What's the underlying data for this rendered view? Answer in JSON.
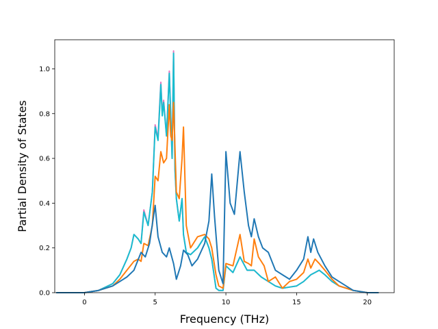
{
  "chart_data": {
    "type": "line",
    "xlabel": "Frequency (THz)",
    "ylabel": "Partial Density of States",
    "xlim": [
      -2.1,
      21.9
    ],
    "ylim": [
      0.0,
      1.13
    ],
    "xticks": [
      0,
      5,
      10,
      15,
      20
    ],
    "xtick_labels": [
      "0",
      "5",
      "10",
      "15",
      "20"
    ],
    "yticks": [
      0.0,
      0.2,
      0.4,
      0.6,
      0.8,
      1.0
    ],
    "ytick_labels": [
      "0.0",
      "0.2",
      "0.4",
      "0.6",
      "0.8",
      "1.0"
    ],
    "grid": false,
    "legend": "none",
    "series": [
      {
        "color": "#e377c2",
        "x": [
          -2.0,
          0.0,
          1.0,
          2.0,
          2.5,
          3.0,
          3.3,
          3.5,
          3.8,
          4.0,
          4.2,
          4.5,
          4.8,
          5.0,
          5.2,
          5.4,
          5.5,
          5.6,
          5.8,
          6.0,
          6.2,
          6.3,
          6.4,
          6.5,
          6.7,
          6.9,
          7.0,
          7.2,
          7.5,
          8.0,
          8.5,
          8.8,
          9.0,
          9.3,
          9.5,
          9.8,
          10.0,
          10.5,
          11.0,
          11.5,
          12.0,
          12.5,
          13.0,
          13.5,
          14.0,
          14.5,
          15.0,
          15.5,
          16.0,
          16.3,
          16.6,
          17.0,
          17.5,
          18.0,
          19.0,
          20.0,
          20.8
        ],
        "y": [
          0.0,
          0.0,
          0.01,
          0.04,
          0.08,
          0.15,
          0.2,
          0.26,
          0.24,
          0.22,
          0.37,
          0.3,
          0.45,
          0.75,
          0.69,
          0.94,
          0.8,
          0.86,
          0.7,
          0.99,
          0.6,
          1.08,
          0.55,
          0.42,
          0.32,
          0.42,
          0.26,
          0.18,
          0.17,
          0.2,
          0.25,
          0.2,
          0.15,
          0.02,
          0.01,
          0.01,
          0.12,
          0.09,
          0.16,
          0.1,
          0.1,
          0.07,
          0.05,
          0.03,
          0.02,
          0.025,
          0.03,
          0.05,
          0.08,
          0.09,
          0.1,
          0.08,
          0.05,
          0.03,
          0.01,
          0.0,
          0.0
        ]
      },
      {
        "color": "#17becf",
        "x": [
          -2.0,
          0.0,
          1.0,
          2.0,
          2.5,
          3.0,
          3.3,
          3.5,
          3.8,
          4.0,
          4.2,
          4.5,
          4.8,
          5.0,
          5.2,
          5.4,
          5.5,
          5.6,
          5.8,
          6.0,
          6.2,
          6.3,
          6.4,
          6.5,
          6.7,
          6.9,
          7.0,
          7.2,
          7.5,
          8.0,
          8.5,
          8.8,
          9.0,
          9.3,
          9.5,
          9.8,
          10.0,
          10.5,
          11.0,
          11.5,
          12.0,
          12.5,
          13.0,
          13.5,
          14.0,
          14.5,
          15.0,
          15.5,
          16.0,
          16.3,
          16.6,
          17.0,
          17.5,
          18.0,
          19.0,
          20.0,
          20.8
        ],
        "y": [
          0.0,
          0.0,
          0.01,
          0.04,
          0.08,
          0.15,
          0.2,
          0.26,
          0.24,
          0.22,
          0.36,
          0.3,
          0.45,
          0.74,
          0.68,
          0.93,
          0.79,
          0.85,
          0.7,
          0.98,
          0.6,
          1.07,
          0.55,
          0.42,
          0.32,
          0.42,
          0.26,
          0.18,
          0.17,
          0.2,
          0.25,
          0.2,
          0.15,
          0.02,
          0.01,
          0.01,
          0.12,
          0.09,
          0.16,
          0.1,
          0.1,
          0.07,
          0.05,
          0.03,
          0.02,
          0.025,
          0.03,
          0.05,
          0.08,
          0.09,
          0.1,
          0.08,
          0.05,
          0.03,
          0.01,
          0.0,
          0.0
        ]
      },
      {
        "color": "#ff7f0e",
        "x": [
          -2.0,
          0.0,
          1.0,
          2.0,
          2.5,
          3.0,
          3.5,
          3.8,
          4.0,
          4.2,
          4.5,
          4.8,
          5.0,
          5.2,
          5.4,
          5.6,
          5.8,
          6.0,
          6.1,
          6.2,
          6.3,
          6.5,
          6.7,
          6.9,
          7.0,
          7.2,
          7.5,
          8.0,
          8.5,
          8.8,
          9.0,
          9.3,
          9.5,
          9.8,
          10.0,
          10.5,
          11.0,
          11.3,
          11.6,
          11.8,
          12.0,
          12.3,
          12.7,
          13.0,
          13.5,
          14.0,
          14.5,
          15.0,
          15.5,
          15.8,
          16.0,
          16.3,
          16.6,
          17.0,
          17.5,
          18.0,
          19.0,
          20.0,
          20.8
        ],
        "y": [
          0.0,
          0.0,
          0.01,
          0.03,
          0.06,
          0.1,
          0.14,
          0.15,
          0.14,
          0.22,
          0.21,
          0.3,
          0.52,
          0.5,
          0.63,
          0.58,
          0.6,
          0.84,
          0.7,
          0.68,
          0.85,
          0.45,
          0.42,
          0.6,
          0.74,
          0.3,
          0.2,
          0.25,
          0.26,
          0.24,
          0.2,
          0.08,
          0.03,
          0.02,
          0.13,
          0.12,
          0.26,
          0.14,
          0.13,
          0.12,
          0.24,
          0.16,
          0.12,
          0.05,
          0.07,
          0.02,
          0.05,
          0.06,
          0.09,
          0.15,
          0.11,
          0.15,
          0.13,
          0.1,
          0.06,
          0.03,
          0.01,
          0.0,
          0.0
        ]
      },
      {
        "color": "#1f77b4",
        "x": [
          -2.0,
          0.0,
          1.0,
          2.0,
          2.5,
          3.0,
          3.5,
          4.0,
          4.3,
          4.6,
          5.0,
          5.2,
          5.5,
          5.8,
          6.0,
          6.3,
          6.5,
          6.8,
          7.0,
          7.3,
          7.6,
          8.0,
          8.5,
          8.8,
          9.0,
          9.2,
          9.5,
          9.8,
          10.0,
          10.3,
          10.6,
          11.0,
          11.3,
          11.6,
          11.8,
          12.0,
          12.3,
          12.6,
          13.0,
          13.5,
          14.0,
          14.5,
          15.0,
          15.5,
          15.8,
          16.0,
          16.2,
          16.5,
          17.0,
          17.5,
          18.0,
          18.5,
          19.0,
          20.0,
          20.8
        ],
        "y": [
          0.0,
          0.0,
          0.01,
          0.03,
          0.05,
          0.07,
          0.1,
          0.18,
          0.16,
          0.22,
          0.39,
          0.25,
          0.18,
          0.16,
          0.2,
          0.13,
          0.06,
          0.12,
          0.19,
          0.17,
          0.12,
          0.15,
          0.22,
          0.32,
          0.53,
          0.34,
          0.1,
          0.04,
          0.63,
          0.4,
          0.35,
          0.63,
          0.45,
          0.3,
          0.25,
          0.33,
          0.25,
          0.2,
          0.18,
          0.1,
          0.08,
          0.06,
          0.1,
          0.15,
          0.25,
          0.18,
          0.24,
          0.18,
          0.12,
          0.07,
          0.05,
          0.03,
          0.01,
          0.0,
          0.0
        ]
      }
    ]
  }
}
